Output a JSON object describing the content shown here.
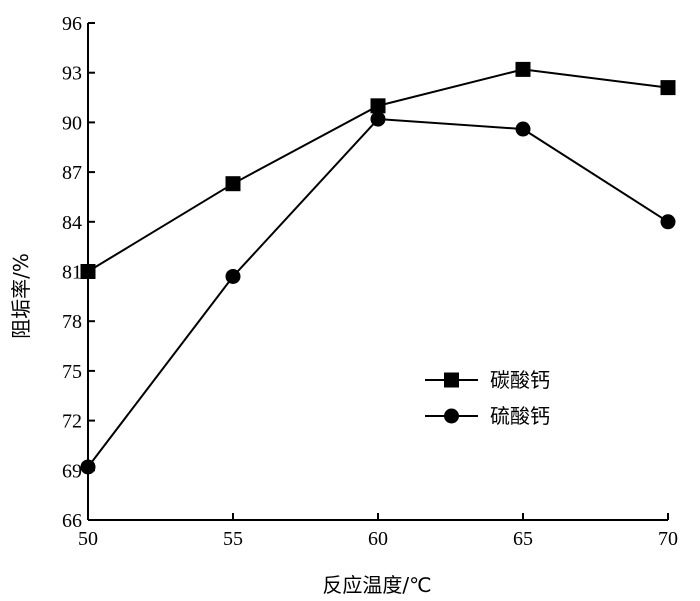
{
  "chart_data": {
    "type": "line",
    "x": [
      50,
      55,
      60,
      65,
      70
    ],
    "xlabel": "反应温度/℃",
    "ylabel": "阻垢率/%",
    "xlim": [
      50,
      70
    ],
    "ylim": [
      66,
      96
    ],
    "xticks": [
      50,
      55,
      60,
      65,
      70
    ],
    "yticks": [
      66,
      69,
      72,
      75,
      78,
      81,
      84,
      87,
      90,
      93,
      96
    ],
    "grid": false,
    "legend_position": "center-right",
    "series": [
      {
        "name": "碳酸钙",
        "marker": "square",
        "values": [
          81.0,
          86.3,
          91.0,
          93.2,
          92.1
        ]
      },
      {
        "name": "硫酸钙",
        "marker": "circle",
        "values": [
          69.2,
          80.7,
          90.2,
          89.6,
          84.0
        ]
      }
    ]
  }
}
